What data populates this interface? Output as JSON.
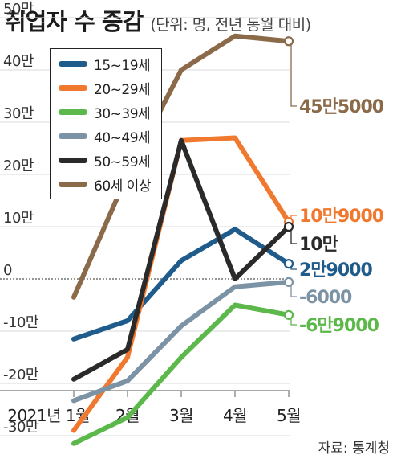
{
  "header": {
    "title": "취업자 수 증감",
    "subtitle": "(단위: 명, 전년 동월 대비)"
  },
  "source": "자료: 통계청",
  "chart_data": {
    "type": "line",
    "title": "취업자 수 증감",
    "subtitle": "(단위: 명, 전년 동월 대비)",
    "x": [
      "2021년 1월",
      "2월",
      "3월",
      "4월",
      "5월"
    ],
    "ylim": [
      -320000,
      560000
    ],
    "yticks": [
      500000,
      400000,
      300000,
      200000,
      100000,
      0,
      -100000,
      -200000,
      -300000
    ],
    "ytick_labels": [
      "50만",
      "40만",
      "30만",
      "20만",
      "10만",
      "0",
      "-10만",
      "-20만",
      "-30만"
    ],
    "grid": true,
    "legend_position": "top-left",
    "series": [
      {
        "name": "15~19세",
        "color": "#1f5c8b",
        "values": [
          -115000,
          -80000,
          35000,
          95000,
          29000
        ],
        "end_label": "2만9000"
      },
      {
        "name": "20~29세",
        "color": "#f0782f",
        "values": [
          -290000,
          -150000,
          265000,
          270000,
          109000
        ],
        "end_label": "10만9000"
      },
      {
        "name": "30~39세",
        "color": "#5cb84a",
        "values": [
          -315000,
          -265000,
          -150000,
          -50000,
          -69000
        ],
        "end_label": "-6만9000"
      },
      {
        "name": "40~49세",
        "color": "#7c93a5",
        "values": [
          -233000,
          -195000,
          -90000,
          -15000,
          -6000
        ],
        "end_label": "-6000"
      },
      {
        "name": "50~59세",
        "color": "#2a2a2a",
        "values": [
          -192000,
          -135000,
          265000,
          0,
          100000
        ],
        "end_label": "10만"
      },
      {
        "name": "60세 이상",
        "color": "#8b6a4a",
        "values": [
          -35000,
          200000,
          400000,
          465000,
          455000
        ],
        "end_label": "45만5000"
      }
    ]
  }
}
